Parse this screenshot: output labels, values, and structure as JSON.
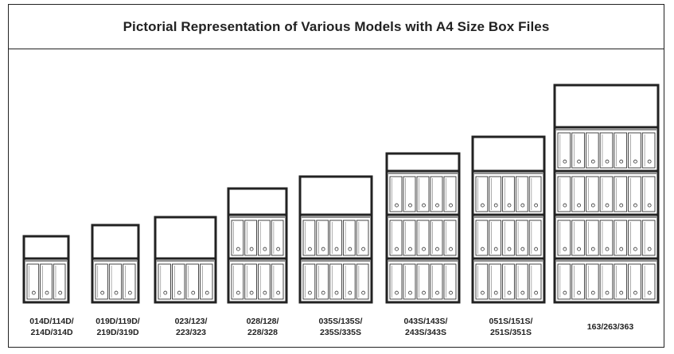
{
  "title": "Pictorial Representation of Various Models with A4 Size Box Files",
  "models": [
    {
      "label_lines": [
        "014D/114D/",
        "214D/314D"
      ],
      "shelves_with_files": 1,
      "files_per_shelf": 3
    },
    {
      "label_lines": [
        "019D/119D/",
        "219D/319D"
      ],
      "shelves_with_files": 1,
      "files_per_shelf": 3
    },
    {
      "label_lines": [
        "023/123/",
        "223/323"
      ],
      "shelves_with_files": 1,
      "files_per_shelf": 4
    },
    {
      "label_lines": [
        "028/128/",
        "228/328"
      ],
      "shelves_with_files": 2,
      "files_per_shelf": 4
    },
    {
      "label_lines": [
        "035S/135S/",
        "235S/335S"
      ],
      "shelves_with_files": 2,
      "files_per_shelf": 5
    },
    {
      "label_lines": [
        "043S/143S/",
        "243S/343S"
      ],
      "shelves_with_files": 3,
      "files_per_shelf": 5
    },
    {
      "label_lines": [
        "051S/151S/",
        "251S/351S"
      ],
      "shelves_with_files": 3,
      "files_per_shelf": 5
    },
    {
      "label_lines": [
        "163/263/363"
      ],
      "shelves_with_files": 4,
      "files_per_shelf": 7
    }
  ],
  "colors": {
    "line": "#222222",
    "file_stroke": "#333333",
    "file_fill": "#ffffff"
  }
}
